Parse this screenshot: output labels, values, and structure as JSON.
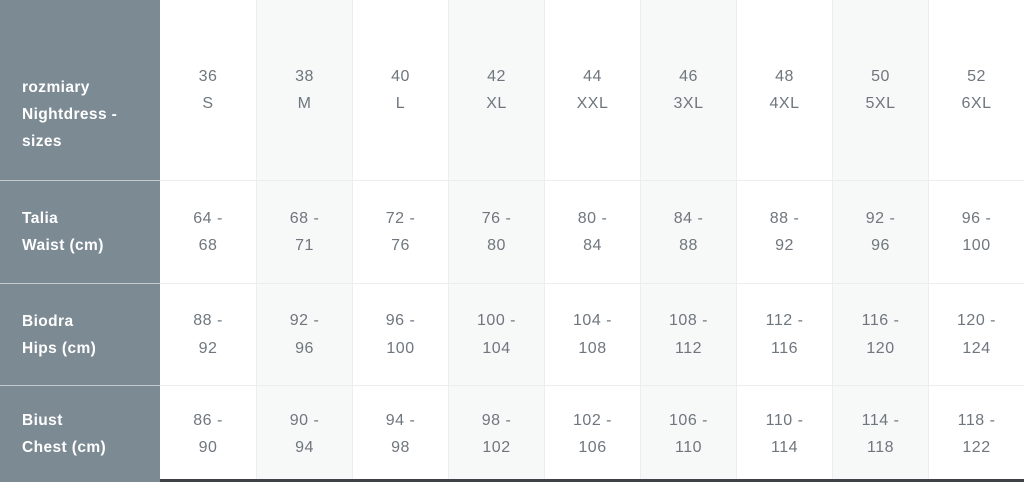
{
  "colors": {
    "sidebar_bg": "#7c8a93",
    "col_bg": "#ffffff",
    "col_alt_bg": "#f7f8f8",
    "text_data": "#6f767d",
    "text_label": "#ffffff",
    "divider_light": "#eceeee",
    "divider_on_gray": "rgba(255,255,255,0.55)",
    "bottom_bar": "#3e4247"
  },
  "size_chart": {
    "corner_label": "rozmiary\nNightdress -\nsizes",
    "columns": [
      {
        "size": "36",
        "intl": "S"
      },
      {
        "size": "38",
        "intl": "M"
      },
      {
        "size": "40",
        "intl": "L"
      },
      {
        "size": "42",
        "intl": "XL"
      },
      {
        "size": "44",
        "intl": "XXL"
      },
      {
        "size": "46",
        "intl": "3XL"
      },
      {
        "size": "48",
        "intl": "4XL"
      },
      {
        "size": "50",
        "intl": "5XL"
      },
      {
        "size": "52",
        "intl": "6XL"
      }
    ],
    "rows": [
      {
        "label_pl": "Talia",
        "label_en": "Waist (cm)",
        "values": [
          "64 -\n68",
          "68 -\n71",
          "72 -\n76",
          "76 -\n80",
          "80 -\n84",
          "84 -\n88",
          "88 -\n92",
          "92 -\n96",
          "96 -\n100"
        ]
      },
      {
        "label_pl": "Biodra",
        "label_en": "Hips (cm)",
        "values": [
          "88 -\n92",
          "92 -\n96",
          "96 -\n100",
          "100 -\n104",
          "104 -\n108",
          "108 -\n112",
          "112 -\n116",
          "116 -\n120",
          "120 -\n124"
        ]
      },
      {
        "label_pl": "Biust",
        "label_en": "Chest (cm)",
        "values": [
          "86 -\n90",
          "90 -\n94",
          "94 -\n98",
          "98 -\n102",
          "102 -\n106",
          "106 -\n110",
          "110 -\n114",
          "114 -\n118",
          "118 -\n122"
        ]
      }
    ]
  }
}
